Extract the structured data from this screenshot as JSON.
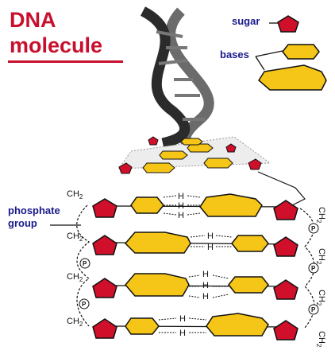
{
  "title": {
    "line1": "DNA",
    "line2": "molecule"
  },
  "legend": {
    "sugar": "sugar",
    "bases": "bases"
  },
  "labels": {
    "phosphate_1": "phosphate",
    "phosphate_2": "group"
  },
  "chem": {
    "ch2": "CH",
    "sub2": "2",
    "h": "H",
    "p": "P"
  },
  "colors": {
    "title_red": "#c8102e",
    "label_blue": "#1a1a8c",
    "sugar_red": "#d0102a",
    "base_yellow": "#f5c518",
    "helix_dark": "#2b2b2b"
  }
}
